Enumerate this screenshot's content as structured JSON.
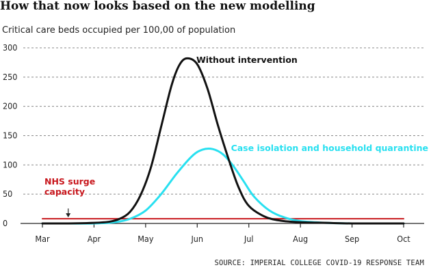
{
  "header": {
    "title": "How that now looks based on the new modelling",
    "subtitle": "Critical care beds occupied per 100,00 of population"
  },
  "source": "SOURCE: IMPERIAL COLLEGE COVID-19 RESPONSE TEAM",
  "colors": {
    "without_intervention": "#111111",
    "case_isolation": "#28e0f0",
    "nhs_capacity": "#c8171d",
    "grid": "#888888",
    "axis": "#222222"
  },
  "chart_data": {
    "type": "line",
    "title": "How that now looks based on the new modelling",
    "subtitle": "Critical care beds occupied per 100,00 of population",
    "xlabel": "",
    "ylabel": "",
    "x_ticks": [
      "Mar",
      "Apr",
      "May",
      "Jun",
      "Jul",
      "Aug",
      "Sep",
      "Oct"
    ],
    "x_domain": [
      0,
      7
    ],
    "y_ticks": [
      0,
      50,
      100,
      150,
      200,
      250,
      300
    ],
    "ylim": [
      0,
      300
    ],
    "grid": "horizontal dashed",
    "annotations": [
      {
        "text": "NHS surge capacity",
        "lines": [
          "NHS surge",
          "capacity"
        ],
        "arrow": "down",
        "arrow_x": 0.5,
        "arrow_target_y": 8
      }
    ],
    "series": [
      {
        "name": "Without intervention",
        "color": "#111111",
        "x": [
          0,
          0.5,
          1.0,
          1.3,
          1.5,
          1.7,
          1.9,
          2.1,
          2.3,
          2.5,
          2.65,
          2.8,
          3.0,
          3.2,
          3.4,
          3.6,
          3.8,
          4.0,
          4.3,
          4.6,
          5.0,
          5.5,
          6.0,
          7.0
        ],
        "values": [
          0,
          0,
          1,
          3,
          8,
          20,
          48,
          95,
          165,
          235,
          270,
          282,
          272,
          230,
          168,
          112,
          62,
          30,
          12,
          5,
          2,
          1,
          0,
          0
        ]
      },
      {
        "name": "Case isolation and household quarantine",
        "color": "#28e0f0",
        "x": [
          0,
          0.5,
          1.0,
          1.4,
          1.7,
          2.0,
          2.3,
          2.6,
          2.9,
          3.1,
          3.3,
          3.5,
          3.7,
          3.9,
          4.1,
          4.4,
          4.7,
          5.0,
          5.5,
          6.0,
          6.5,
          7.0
        ],
        "values": [
          0,
          0,
          0,
          2,
          8,
          22,
          50,
          85,
          115,
          126,
          127,
          118,
          98,
          72,
          46,
          22,
          10,
          4,
          1,
          0,
          0,
          0
        ]
      },
      {
        "name": "NHS surge capacity",
        "color": "#c8171d",
        "x": [
          0,
          7
        ],
        "values": [
          8,
          8
        ]
      }
    ]
  }
}
